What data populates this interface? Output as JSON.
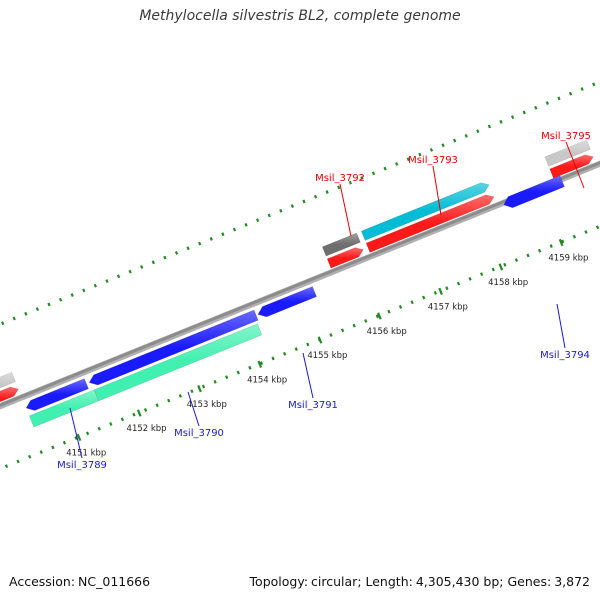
{
  "title": "Methylocella silvestris BL2, complete genome",
  "footer": {
    "accession_label": "Accession:",
    "accession": "NC_011666",
    "topology_label": "Topology:",
    "topology": "circular",
    "length_label": "Length:",
    "length": "4,305,430 bp",
    "genes_label": "Genes:",
    "genes": "3,872"
  },
  "colors": {
    "backbone": "#8c8c8c",
    "tick": "#228b22",
    "gene_forward": "#00bcd4",
    "gene_reverse": "#1a1aff",
    "cds": "#ff1a1a",
    "rna": "#40f0b0",
    "gray": "#6e6e6e",
    "lightgray": "#c8c8c8",
    "label_forward": "#e60000",
    "label_reverse": "#1a1acc"
  },
  "scale": {
    "unit": "kbp",
    "labels": [
      "4151 kbp",
      "4152 kbp",
      "4153 kbp",
      "4154 kbp",
      "4155 kbp",
      "4156 kbp",
      "4157 kbp",
      "4158 kbp",
      "4159 kbp"
    ]
  },
  "genes": [
    {
      "name": "Msil_3789",
      "strand": "reverse"
    },
    {
      "name": "Msil_3790",
      "strand": "reverse"
    },
    {
      "name": "Msil_3791",
      "strand": "reverse"
    },
    {
      "name": "Msil_3792",
      "strand": "forward"
    },
    {
      "name": "Msil_3793",
      "strand": "forward"
    },
    {
      "name": "Msil_3794",
      "strand": "reverse"
    },
    {
      "name": "Msil_3795",
      "strand": "forward"
    }
  ]
}
